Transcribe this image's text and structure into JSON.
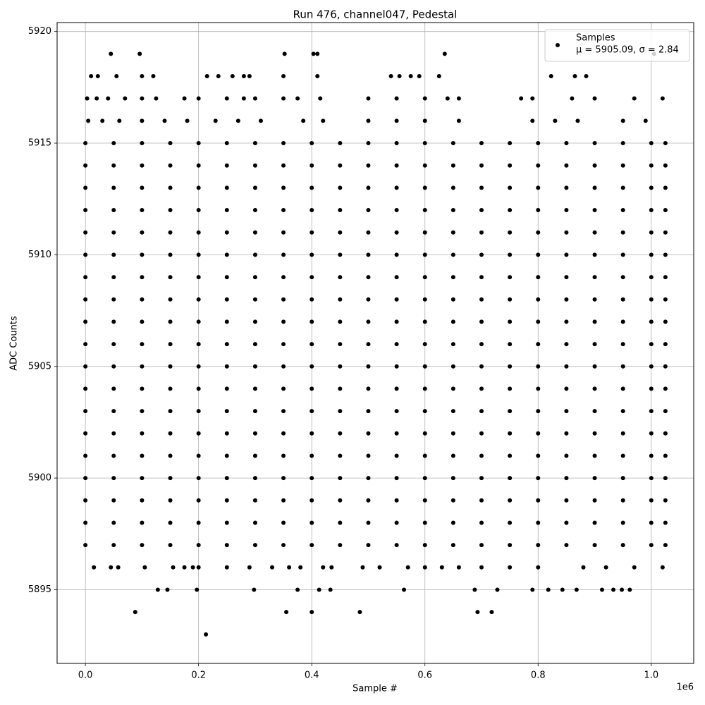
{
  "chart_data": {
    "type": "scatter",
    "title": "Run 476, channel047, Pedestal",
    "x_label": "Sample #",
    "y_label": "ADC Counts",
    "x_offset_label": "1e6",
    "xlim": [
      -0.05,
      1.075
    ],
    "ylim": [
      5891.7,
      5920.4
    ],
    "xticks": [
      {
        "value": 0,
        "label": "0.0"
      },
      0.2,
      0.4,
      0.6,
      0.8,
      {
        "value": 1,
        "label": "1.0"
      }
    ],
    "yticks": [
      5895,
      5900,
      5905,
      5910,
      5915,
      5920
    ],
    "grid": true,
    "legend": "upper right",
    "series": [
      {
        "name": "Samples",
        "legend_stats": "μ = 5905.09, σ = 2.84",
        "color": "#000000",
        "x": [
          0.213,
          0.088,
          0.355,
          0.4,
          0.485,
          0.693,
          0.718,
          0.128,
          0.145,
          0.197,
          0.298,
          0.375,
          0.413,
          0.433,
          0.563,
          0.688,
          0.728,
          0.79,
          0.818,
          0.843,
          0.868,
          0.913,
          0.933,
          0.948,
          0.962,
          0.015,
          0.045,
          0.058,
          0.105,
          0.155,
          0.175,
          0.19,
          0.2,
          0.25,
          0.29,
          0.33,
          0.36,
          0.38,
          0.42,
          0.435,
          0.49,
          0.52,
          0.57,
          0.6,
          0.63,
          0.66,
          0.7,
          0.75,
          0.8,
          0.88,
          0.92,
          0.97,
          1.02,
          0,
          0.05,
          0.1,
          0.15,
          0.2,
          0.25,
          0.3,
          0.35,
          0.4,
          0.45,
          0.5,
          0.55,
          0.6,
          0.65,
          0.7,
          0.75,
          0.8,
          0.85,
          0.9,
          0.95,
          1,
          1.025,
          0,
          0.05,
          0.1,
          0.15,
          0.2,
          0.25,
          0.3,
          0.35,
          0.4,
          0.45,
          0.5,
          0.55,
          0.6,
          0.65,
          0.7,
          0.75,
          0.8,
          0.85,
          0.9,
          0.95,
          1,
          1.025,
          0,
          0.05,
          0.1,
          0.15,
          0.2,
          0.25,
          0.3,
          0.35,
          0.4,
          0.45,
          0.5,
          0.55,
          0.6,
          0.65,
          0.7,
          0.75,
          0.8,
          0.85,
          0.9,
          0.95,
          1,
          1.025,
          0,
          0.05,
          0.1,
          0.15,
          0.2,
          0.25,
          0.3,
          0.35,
          0.4,
          0.45,
          0.5,
          0.55,
          0.6,
          0.65,
          0.7,
          0.75,
          0.8,
          0.85,
          0.9,
          0.95,
          1,
          1.025,
          0,
          0.05,
          0.1,
          0.15,
          0.2,
          0.25,
          0.3,
          0.35,
          0.4,
          0.45,
          0.5,
          0.55,
          0.6,
          0.65,
          0.7,
          0.75,
          0.8,
          0.85,
          0.9,
          0.95,
          1,
          1.025,
          0,
          0.05,
          0.1,
          0.15,
          0.2,
          0.25,
          0.3,
          0.35,
          0.4,
          0.45,
          0.5,
          0.55,
          0.6,
          0.65,
          0.7,
          0.75,
          0.8,
          0.85,
          0.9,
          0.95,
          1,
          1.025,
          0,
          0.05,
          0.1,
          0.15,
          0.2,
          0.25,
          0.3,
          0.35,
          0.4,
          0.45,
          0.5,
          0.55,
          0.6,
          0.65,
          0.7,
          0.75,
          0.8,
          0.85,
          0.9,
          0.95,
          1,
          1.025,
          0,
          0.05,
          0.1,
          0.15,
          0.2,
          0.25,
          0.3,
          0.35,
          0.4,
          0.45,
          0.5,
          0.55,
          0.6,
          0.65,
          0.7,
          0.75,
          0.8,
          0.85,
          0.9,
          0.95,
          1,
          1.025,
          0,
          0.05,
          0.1,
          0.15,
          0.2,
          0.25,
          0.3,
          0.35,
          0.4,
          0.45,
          0.5,
          0.55,
          0.6,
          0.65,
          0.7,
          0.75,
          0.8,
          0.85,
          0.9,
          0.95,
          1,
          1.025,
          0,
          0.05,
          0.1,
          0.15,
          0.2,
          0.25,
          0.3,
          0.35,
          0.4,
          0.45,
          0.5,
          0.55,
          0.6,
          0.65,
          0.7,
          0.75,
          0.8,
          0.85,
          0.9,
          0.95,
          1,
          1.025,
          0,
          0.05,
          0.1,
          0.15,
          0.2,
          0.25,
          0.3,
          0.35,
          0.4,
          0.45,
          0.5,
          0.55,
          0.6,
          0.65,
          0.7,
          0.75,
          0.8,
          0.85,
          0.9,
          0.95,
          1,
          1.025,
          0,
          0.05,
          0.1,
          0.15,
          0.2,
          0.25,
          0.3,
          0.35,
          0.4,
          0.45,
          0.5,
          0.55,
          0.6,
          0.65,
          0.7,
          0.75,
          0.8,
          0.85,
          0.9,
          0.95,
          1,
          1.025,
          0,
          0.05,
          0.1,
          0.15,
          0.2,
          0.25,
          0.3,
          0.35,
          0.4,
          0.45,
          0.5,
          0.55,
          0.6,
          0.65,
          0.7,
          0.75,
          0.8,
          0.85,
          0.9,
          0.95,
          1,
          1.025,
          0,
          0.05,
          0.1,
          0.15,
          0.2,
          0.25,
          0.3,
          0.35,
          0.4,
          0.45,
          0.5,
          0.55,
          0.6,
          0.65,
          0.7,
          0.75,
          0.8,
          0.85,
          0.9,
          0.95,
          1,
          1.025,
          0,
          0.05,
          0.1,
          0.15,
          0.2,
          0.25,
          0.3,
          0.35,
          0.4,
          0.45,
          0.5,
          0.55,
          0.6,
          0.65,
          0.7,
          0.75,
          0.8,
          0.85,
          0.9,
          0.95,
          1,
          1.025,
          0,
          0.05,
          0.1,
          0.15,
          0.2,
          0.25,
          0.3,
          0.35,
          0.4,
          0.45,
          0.5,
          0.55,
          0.6,
          0.65,
          0.7,
          0.75,
          0.8,
          0.85,
          0.9,
          0.95,
          1,
          1.025,
          0,
          0.05,
          0.1,
          0.15,
          0.2,
          0.25,
          0.3,
          0.35,
          0.4,
          0.45,
          0.5,
          0.55,
          0.6,
          0.65,
          0.7,
          0.75,
          0.8,
          0.85,
          0.9,
          0.95,
          1,
          1.025,
          0,
          0.05,
          0.1,
          0.15,
          0.2,
          0.25,
          0.3,
          0.35,
          0.4,
          0.45,
          0.5,
          0.55,
          0.6,
          0.65,
          0.7,
          0.75,
          0.8,
          0.85,
          0.9,
          0.95,
          1,
          1.025,
          0,
          0.05,
          0.1,
          0.15,
          0.2,
          0.25,
          0.3,
          0.35,
          0.4,
          0.45,
          0.5,
          0.55,
          0.6,
          0.65,
          0.7,
          0.75,
          0.8,
          0.85,
          0.9,
          0.95,
          1,
          1.025,
          0.005,
          0.03,
          0.06,
          0.1,
          0.14,
          0.18,
          0.23,
          0.27,
          0.31,
          0.385,
          0.42,
          0.5,
          0.55,
          0.6,
          0.66,
          0.79,
          0.83,
          0.87,
          0.95,
          0.99,
          0.003,
          0.02,
          0.04,
          0.07,
          0.1,
          0.125,
          0.175,
          0.2,
          0.25,
          0.28,
          0.3,
          0.35,
          0.375,
          0.415,
          0.5,
          0.55,
          0.6,
          0.64,
          0.66,
          0.77,
          0.79,
          0.86,
          0.9,
          0.97,
          1.02,
          0.01,
          0.022,
          0.055,
          0.1,
          0.12,
          0.215,
          0.235,
          0.26,
          0.28,
          0.29,
          0.35,
          0.41,
          0.54,
          0.555,
          0.575,
          0.59,
          0.625,
          0.823,
          0.865,
          0.885,
          0.045,
          0.096,
          0.352,
          0.403,
          0.41,
          0.635,
          1.005
        ],
        "values": [
          5893,
          5894,
          5894,
          5894,
          5894,
          5894,
          5894,
          5895,
          5895,
          5895,
          5895,
          5895,
          5895,
          5895,
          5895,
          5895,
          5895,
          5895,
          5895,
          5895,
          5895,
          5895,
          5895,
          5895,
          5895,
          5896,
          5896,
          5896,
          5896,
          5896,
          5896,
          5896,
          5896,
          5896,
          5896,
          5896,
          5896,
          5896,
          5896,
          5896,
          5896,
          5896,
          5896,
          5896,
          5896,
          5896,
          5896,
          5896,
          5896,
          5896,
          5896,
          5896,
          5896,
          5897,
          5897,
          5897,
          5897,
          5897,
          5897,
          5897,
          5897,
          5897,
          5897,
          5897,
          5897,
          5897,
          5897,
          5897,
          5897,
          5897,
          5897,
          5897,
          5897,
          5897,
          5897,
          5898,
          5898,
          5898,
          5898,
          5898,
          5898,
          5898,
          5898,
          5898,
          5898,
          5898,
          5898,
          5898,
          5898,
          5898,
          5898,
          5898,
          5898,
          5898,
          5898,
          5898,
          5898,
          5899,
          5899,
          5899,
          5899,
          5899,
          5899,
          5899,
          5899,
          5899,
          5899,
          5899,
          5899,
          5899,
          5899,
          5899,
          5899,
          5899,
          5899,
          5899,
          5899,
          5899,
          5899,
          5900,
          5900,
          5900,
          5900,
          5900,
          5900,
          5900,
          5900,
          5900,
          5900,
          5900,
          5900,
          5900,
          5900,
          5900,
          5900,
          5900,
          5900,
          5900,
          5900,
          5900,
          5900,
          5901,
          5901,
          5901,
          5901,
          5901,
          5901,
          5901,
          5901,
          5901,
          5901,
          5901,
          5901,
          5901,
          5901,
          5901,
          5901,
          5901,
          5901,
          5901,
          5901,
          5901,
          5901,
          5902,
          5902,
          5902,
          5902,
          5902,
          5902,
          5902,
          5902,
          5902,
          5902,
          5902,
          5902,
          5902,
          5902,
          5902,
          5902,
          5902,
          5902,
          5902,
          5902,
          5902,
          5902,
          5903,
          5903,
          5903,
          5903,
          5903,
          5903,
          5903,
          5903,
          5903,
          5903,
          5903,
          5903,
          5903,
          5903,
          5903,
          5903,
          5903,
          5903,
          5903,
          5903,
          5903,
          5903,
          5904,
          5904,
          5904,
          5904,
          5904,
          5904,
          5904,
          5904,
          5904,
          5904,
          5904,
          5904,
          5904,
          5904,
          5904,
          5904,
          5904,
          5904,
          5904,
          5904,
          5904,
          5904,
          5905,
          5905,
          5905,
          5905,
          5905,
          5905,
          5905,
          5905,
          5905,
          5905,
          5905,
          5905,
          5905,
          5905,
          5905,
          5905,
          5905,
          5905,
          5905,
          5905,
          5905,
          5905,
          5906,
          5906,
          5906,
          5906,
          5906,
          5906,
          5906,
          5906,
          5906,
          5906,
          5906,
          5906,
          5906,
          5906,
          5906,
          5906,
          5906,
          5906,
          5906,
          5906,
          5906,
          5906,
          5907,
          5907,
          5907,
          5907,
          5907,
          5907,
          5907,
          5907,
          5907,
          5907,
          5907,
          5907,
          5907,
          5907,
          5907,
          5907,
          5907,
          5907,
          5907,
          5907,
          5907,
          5907,
          5908,
          5908,
          5908,
          5908,
          5908,
          5908,
          5908,
          5908,
          5908,
          5908,
          5908,
          5908,
          5908,
          5908,
          5908,
          5908,
          5908,
          5908,
          5908,
          5908,
          5908,
          5908,
          5909,
          5909,
          5909,
          5909,
          5909,
          5909,
          5909,
          5909,
          5909,
          5909,
          5909,
          5909,
          5909,
          5909,
          5909,
          5909,
          5909,
          5909,
          5909,
          5909,
          5909,
          5909,
          5910,
          5910,
          5910,
          5910,
          5910,
          5910,
          5910,
          5910,
          5910,
          5910,
          5910,
          5910,
          5910,
          5910,
          5910,
          5910,
          5910,
          5910,
          5910,
          5910,
          5910,
          5910,
          5911,
          5911,
          5911,
          5911,
          5911,
          5911,
          5911,
          5911,
          5911,
          5911,
          5911,
          5911,
          5911,
          5911,
          5911,
          5911,
          5911,
          5911,
          5911,
          5911,
          5911,
          5911,
          5912,
          5912,
          5912,
          5912,
          5912,
          5912,
          5912,
          5912,
          5912,
          5912,
          5912,
          5912,
          5912,
          5912,
          5912,
          5912,
          5912,
          5912,
          5912,
          5912,
          5912,
          5912,
          5913,
          5913,
          5913,
          5913,
          5913,
          5913,
          5913,
          5913,
          5913,
          5913,
          5913,
          5913,
          5913,
          5913,
          5913,
          5913,
          5913,
          5913,
          5913,
          5913,
          5913,
          5913,
          5914,
          5914,
          5914,
          5914,
          5914,
          5914,
          5914,
          5914,
          5914,
          5914,
          5914,
          5914,
          5914,
          5914,
          5914,
          5914,
          5914,
          5914,
          5914,
          5914,
          5914,
          5914,
          5915,
          5915,
          5915,
          5915,
          5915,
          5915,
          5915,
          5915,
          5915,
          5915,
          5915,
          5915,
          5915,
          5915,
          5915,
          5915,
          5915,
          5915,
          5915,
          5915,
          5915,
          5915,
          5916,
          5916,
          5916,
          5916,
          5916,
          5916,
          5916,
          5916,
          5916,
          5916,
          5916,
          5916,
          5916,
          5916,
          5916,
          5916,
          5916,
          5916,
          5916,
          5916,
          5917,
          5917,
          5917,
          5917,
          5917,
          5917,
          5917,
          5917,
          5917,
          5917,
          5917,
          5917,
          5917,
          5917,
          5917,
          5917,
          5917,
          5917,
          5917,
          5917,
          5917,
          5917,
          5917,
          5917,
          5917,
          5918,
          5918,
          5918,
          5918,
          5918,
          5918,
          5918,
          5918,
          5918,
          5918,
          5918,
          5918,
          5918,
          5918,
          5918,
          5918,
          5918,
          5918,
          5918,
          5918,
          5919,
          5919,
          5919,
          5919,
          5919,
          5919,
          5919
        ]
      }
    ]
  }
}
